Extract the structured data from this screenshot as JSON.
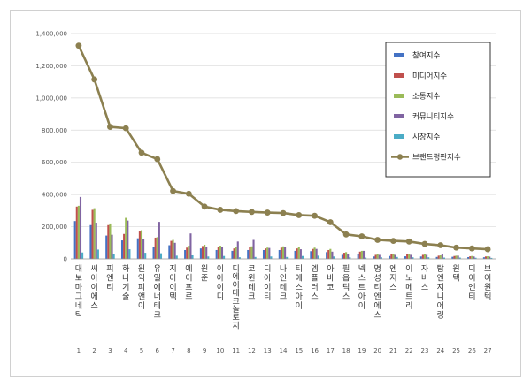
{
  "chart_data": {
    "type": "bar",
    "title": "",
    "xlabel": "",
    "ylabel": "",
    "ylim": [
      0,
      1400000
    ],
    "yticks": [
      0,
      200000,
      400000,
      600000,
      800000,
      1000000,
      1200000,
      1400000
    ],
    "ytick_labels": [
      "0",
      "200,000",
      "400,000",
      "600,000",
      "800,000",
      "1,000,000",
      "1,200,000",
      "1,400,000"
    ],
    "grid": true,
    "legend_position": "top-right",
    "categories": [
      "대보마그네틱",
      "씨아이에스",
      "피엔티",
      "하나기술",
      "원익피앤이",
      "유일에너테크",
      "지아이텍",
      "에이프로",
      "원준",
      "이아이디",
      "디에이테크놀로지",
      "코윈테크",
      "디아이티",
      "나인테크",
      "티에스아이",
      "엠플러스",
      "아바코",
      "필옵틱스",
      "넥스트아이",
      "명성티엔에스",
      "엔지스",
      "이노메트리",
      "자비스",
      "탑엔지니어링",
      "원텍",
      "디이엔티",
      "브이원텍"
    ],
    "ranks": [
      "1",
      "2",
      "3",
      "4",
      "5",
      "6",
      "7",
      "8",
      "9",
      "10",
      "11",
      "12",
      "13",
      "14",
      "15",
      "16",
      "17",
      "18",
      "19",
      "20",
      "21",
      "22",
      "23",
      "24",
      "25",
      "26",
      "27"
    ],
    "series": [
      {
        "name": "참여지수",
        "kind": "bar",
        "color": "#4472c4",
        "values": [
          235000,
          210000,
          145000,
          115000,
          128000,
          75000,
          85000,
          55000,
          65000,
          55000,
          50000,
          55000,
          55000,
          55000,
          50000,
          48000,
          42000,
          25000,
          30000,
          15000,
          18000,
          16000,
          15000,
          12000,
          13000,
          11000,
          10000
        ]
      },
      {
        "name": "미디어지수",
        "kind": "bar",
        "color": "#c0504d",
        "values": [
          325000,
          305000,
          210000,
          155000,
          170000,
          132000,
          112000,
          70000,
          80000,
          75000,
          65000,
          72000,
          65000,
          70000,
          65000,
          62000,
          55000,
          38000,
          45000,
          25000,
          28000,
          28000,
          25000,
          20000,
          18000,
          16000,
          15000
        ]
      },
      {
        "name": "소통지수",
        "kind": "bar",
        "color": "#9bbb59",
        "values": [
          330000,
          315000,
          220000,
          255000,
          178000,
          135000,
          118000,
          82000,
          88000,
          82000,
          72000,
          78000,
          70000,
          78000,
          72000,
          70000,
          62000,
          42000,
          50000,
          28000,
          30000,
          30000,
          28000,
          22000,
          20000,
          18000,
          16000
        ]
      },
      {
        "name": "커뮤니티지수",
        "kind": "bar",
        "color": "#8064a2",
        "values": [
          385000,
          225000,
          150000,
          238000,
          125000,
          230000,
          100000,
          158000,
          75000,
          75000,
          108000,
          118000,
          68000,
          75000,
          60000,
          62000,
          45000,
          30000,
          50000,
          25000,
          25000,
          25000,
          25000,
          28000,
          20000,
          15000,
          14000
        ]
      },
      {
        "name": "시장지수",
        "kind": "bar",
        "color": "#4bacc6",
        "values": [
          40000,
          58000,
          30000,
          60000,
          38000,
          35000,
          20000,
          22000,
          15000,
          18000,
          10000,
          12000,
          15000,
          12000,
          18000,
          20000,
          15000,
          10000,
          8000,
          10000,
          12000,
          10000,
          10000,
          8000,
          8000,
          7000,
          6000
        ]
      },
      {
        "name": "브랜드평판지수",
        "kind": "line",
        "color": "#8c8050",
        "values": [
          1325000,
          1115000,
          820000,
          812000,
          660000,
          620000,
          422000,
          405000,
          325000,
          305000,
          297000,
          292000,
          288000,
          285000,
          272000,
          268000,
          228000,
          152000,
          140000,
          118000,
          112000,
          108000,
          93000,
          85000,
          70000,
          65000,
          60000
        ]
      }
    ]
  }
}
